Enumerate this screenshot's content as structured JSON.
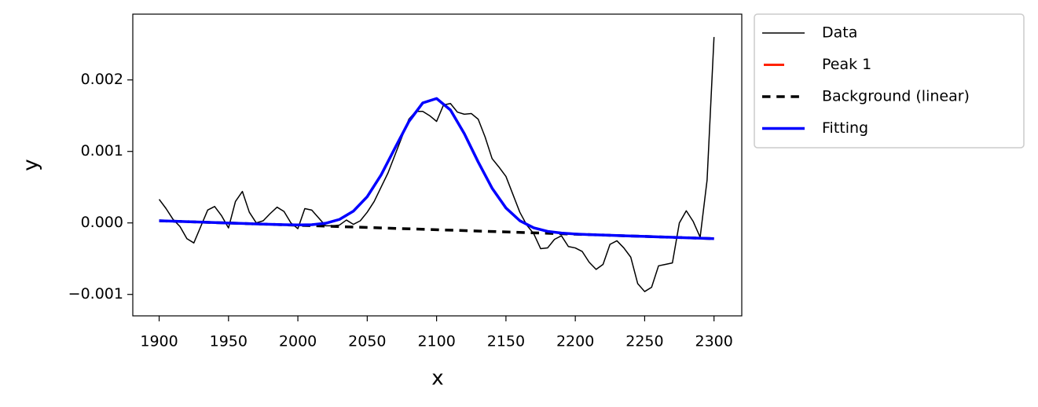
{
  "chart_data": {
    "type": "line",
    "xlabel": "x",
    "ylabel": "y",
    "xlim": [
      1881,
      2320
    ],
    "ylim": [
      -0.0013,
      0.00292
    ],
    "xticks": [
      1900,
      1950,
      2000,
      2050,
      2100,
      2150,
      2200,
      2250,
      2300
    ],
    "yticks": [
      {
        "value": -0.001,
        "label": "−0.001"
      },
      {
        "value": 0,
        "label": "0.000"
      },
      0.001,
      0.002
    ],
    "legend": "outside upper right",
    "series": [
      {
        "name": "Data",
        "color": "#000000",
        "width": 1.5,
        "dash": "solid",
        "x": [
          1900,
          1905,
          1910,
          1915,
          1920,
          1925,
          1930,
          1935,
          1940,
          1945,
          1950,
          1955,
          1960,
          1965,
          1970,
          1975,
          1980,
          1985,
          1990,
          1995,
          2000,
          2005,
          2010,
          2015,
          2020,
          2025,
          2030,
          2035,
          2040,
          2045,
          2050,
          2055,
          2060,
          2065,
          2070,
          2075,
          2080,
          2085,
          2090,
          2095,
          2100,
          2105,
          2110,
          2115,
          2120,
          2125,
          2130,
          2135,
          2140,
          2145,
          2150,
          2155,
          2160,
          2165,
          2170,
          2175,
          2180,
          2185,
          2190,
          2195,
          2200,
          2205,
          2210,
          2215,
          2220,
          2225,
          2230,
          2235,
          2240,
          2245,
          2250,
          2255,
          2260,
          2265,
          2270,
          2275,
          2280,
          2285,
          2290,
          2295,
          2300
        ],
        "values": [
          0.00033,
          0.0002,
          5e-05,
          -5e-05,
          -0.00022,
          -0.00028,
          -5e-05,
          0.00018,
          0.00023,
          0.0001,
          -7e-05,
          0.0003,
          0.00044,
          0.00015,
          0.0,
          3e-05,
          0.00013,
          0.00022,
          0.00016,
          0.0,
          -8e-05,
          0.0002,
          0.00018,
          7e-05,
          -4e-05,
          -4e-05,
          -3e-05,
          4e-05,
          -2e-05,
          3e-05,
          0.00015,
          0.0003,
          0.0005,
          0.0007,
          0.00095,
          0.0012,
          0.00145,
          0.00156,
          0.00156,
          0.0015,
          0.00142,
          0.00165,
          0.00167,
          0.00155,
          0.00152,
          0.00153,
          0.00145,
          0.0012,
          0.0009,
          0.00078,
          0.00065,
          0.0004,
          0.00015,
          -3e-05,
          -0.00015,
          -0.00036,
          -0.00035,
          -0.00023,
          -0.00018,
          -0.00033,
          -0.00035,
          -0.0004,
          -0.00055,
          -0.00065,
          -0.00058,
          -0.0003,
          -0.00025,
          -0.00035,
          -0.00048,
          -0.00085,
          -0.00096,
          -0.0009,
          -0.0006,
          -0.00058,
          -0.00056,
          0.0,
          0.00017,
          2e-05,
          -0.0002,
          0.0006,
          0.0026
        ]
      },
      {
        "name": "Peak 1",
        "color": "#ff2200",
        "width": 3,
        "dash": "dashed",
        "x": [
          1900,
          1910,
          1920,
          1930,
          1940,
          1950,
          1960,
          1970,
          1980,
          1990,
          2000,
          2010,
          2020,
          2030,
          2040,
          2050,
          2060,
          2070,
          2080,
          2090,
          2100,
          2110,
          2120,
          2130,
          2140,
          2150,
          2160,
          2170,
          2180,
          2190,
          2200,
          2210,
          2220,
          2230,
          2240,
          2250,
          2260,
          2270,
          2280,
          2290,
          2300
        ],
        "values": [
          3e-05,
          2.4e-05,
          1.75e-05,
          1.13e-05,
          5e-06,
          -1.3e-06,
          -7.5e-06,
          -1.4e-05,
          -2e-05,
          -2.5e-05,
          -2.8e-05,
          -2.5e-05,
          -5e-06,
          4.9e-05,
          0.000164,
          0.000367,
          0.000671,
          0.001047,
          0.001418,
          0.001678,
          0.00174,
          0.001579,
          0.001248,
          0.000852,
          0.000486,
          0.000209,
          3.1e-05,
          -6.9e-05,
          -0.000118,
          -0.000142,
          -0.000155,
          -0.000164,
          -0.00017,
          -0.000176,
          -0.000183,
          -0.000189,
          -0.000195,
          -0.000201,
          -0.000208,
          -0.000214,
          -0.00022
        ]
      },
      {
        "name": "Background (linear)",
        "color": "#000000",
        "width": 3.5,
        "dash": "dashed",
        "x": [
          1900,
          2300
        ],
        "values": [
          3e-05,
          -0.00022
        ]
      },
      {
        "name": "Fitting",
        "color": "#0000ff",
        "width": 3.5,
        "dash": "solid",
        "x": [
          1900,
          1910,
          1920,
          1930,
          1940,
          1950,
          1960,
          1970,
          1980,
          1990,
          2000,
          2010,
          2020,
          2030,
          2040,
          2050,
          2060,
          2070,
          2080,
          2090,
          2100,
          2110,
          2120,
          2130,
          2140,
          2150,
          2160,
          2170,
          2180,
          2190,
          2200,
          2210,
          2220,
          2230,
          2240,
          2250,
          2260,
          2270,
          2280,
          2290,
          2300
        ],
        "values": [
          3e-05,
          2.4e-05,
          1.75e-05,
          1.13e-05,
          5e-06,
          -1.3e-06,
          -7.5e-06,
          -1.4e-05,
          -2e-05,
          -2.5e-05,
          -2.8e-05,
          -2.5e-05,
          -5e-06,
          4.9e-05,
          0.000164,
          0.000367,
          0.000671,
          0.001047,
          0.001418,
          0.001678,
          0.00174,
          0.001579,
          0.001248,
          0.000852,
          0.000486,
          0.000209,
          3.1e-05,
          -6.9e-05,
          -0.000118,
          -0.000142,
          -0.000155,
          -0.000164,
          -0.00017,
          -0.000176,
          -0.000183,
          -0.000189,
          -0.000195,
          -0.000201,
          -0.000208,
          -0.000214,
          -0.00022
        ]
      }
    ]
  }
}
